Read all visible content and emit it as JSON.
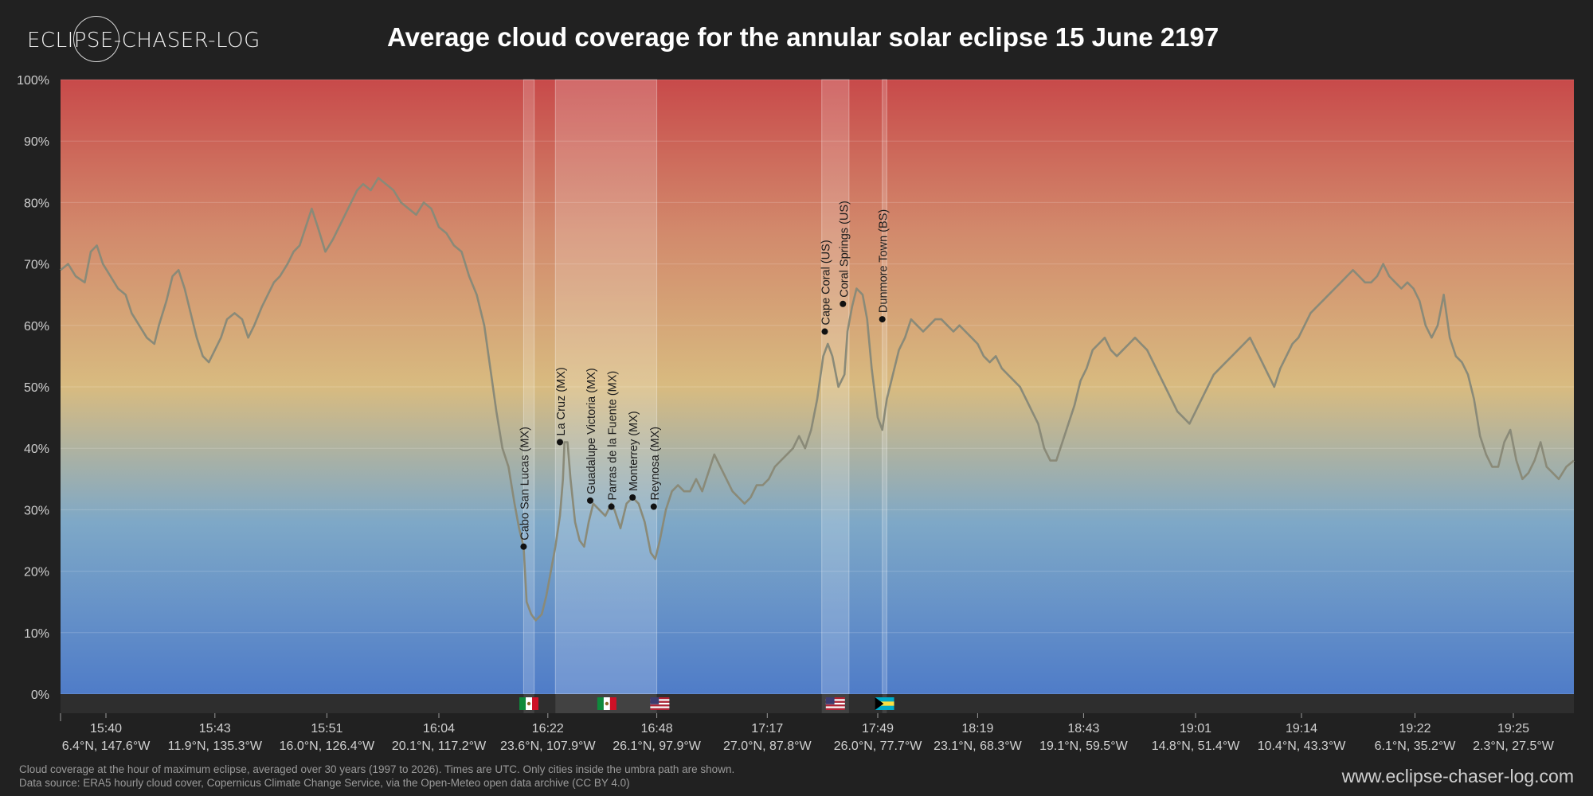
{
  "header": {
    "logo_text": "ECLIPSE-CHASER-LOG",
    "title": "Average cloud coverage for the annular solar eclipse 15 June 2197"
  },
  "footer": {
    "note_line1": "Cloud coverage at the hour of maximum eclipse, averaged over 30 years (1997 to 2026). Times are UTC. Only cities inside the umbra path are shown.",
    "note_line2": "Data source: ERA5 hourly cloud cover, Copernicus Climate Change Service, via the Open-Meteo open data archive (CC BY 4.0)",
    "site": "www.eclipse-chaser-log.com"
  },
  "colors": {
    "background": "#212121",
    "gradient_top": "#c84a4a",
    "gradient_mid": "#d8bb80",
    "gradient_bottom": "#4f7cc8",
    "line": "#8a8a78"
  },
  "chart_data": {
    "type": "line",
    "title": "Average cloud coverage for the annular solar eclipse 15 June 2197",
    "ylabel": "",
    "xlabel": "",
    "ylim": [
      0,
      100
    ],
    "yticks": [
      "0%",
      "10%",
      "20%",
      "30%",
      "40%",
      "50%",
      "60%",
      "70%",
      "80%",
      "90%",
      "100%"
    ],
    "grid": true,
    "x_ticks": [
      {
        "time": "15:40",
        "coord": "6.4°N, 147.6°W",
        "pos": 0.03
      },
      {
        "time": "15:43",
        "coord": "11.9°N, 135.3°W",
        "pos": 0.102
      },
      {
        "time": "15:51",
        "coord": "16.0°N, 126.4°W",
        "pos": 0.176
      },
      {
        "time": "16:04",
        "coord": "20.1°N, 117.2°W",
        "pos": 0.25
      },
      {
        "time": "16:22",
        "coord": "23.6°N, 107.9°W",
        "pos": 0.322
      },
      {
        "time": "16:48",
        "coord": "26.1°N, 97.9°W",
        "pos": 0.394
      },
      {
        "time": "17:17",
        "coord": "27.0°N, 87.8°W",
        "pos": 0.467
      },
      {
        "time": "17:49",
        "coord": "26.0°N, 77.7°W",
        "pos": 0.54
      },
      {
        "time": "18:19",
        "coord": "23.1°N, 68.3°W",
        "pos": 0.606
      },
      {
        "time": "18:43",
        "coord": "19.1°N, 59.5°W",
        "pos": 0.676
      },
      {
        "time": "19:01",
        "coord": "14.8°N, 51.4°W",
        "pos": 0.75
      },
      {
        "time": "19:14",
        "coord": "10.4°N, 43.3°W",
        "pos": 0.82
      },
      {
        "time": "19:22",
        "coord": "6.1°N, 35.2°W",
        "pos": 0.895
      },
      {
        "time": "19:25",
        "coord": "2.3°N, 27.5°W",
        "pos": 0.96
      }
    ],
    "series": [
      {
        "values": [
          [
            0.0,
            69
          ],
          [
            0.005,
            70
          ],
          [
            0.01,
            68
          ],
          [
            0.016,
            67
          ],
          [
            0.02,
            72
          ],
          [
            0.024,
            73
          ],
          [
            0.028,
            70
          ],
          [
            0.033,
            68
          ],
          [
            0.038,
            66
          ],
          [
            0.043,
            65
          ],
          [
            0.047,
            62
          ],
          [
            0.052,
            60
          ],
          [
            0.057,
            58
          ],
          [
            0.062,
            57
          ],
          [
            0.065,
            60
          ],
          [
            0.07,
            64
          ],
          [
            0.074,
            68
          ],
          [
            0.078,
            69
          ],
          [
            0.082,
            66
          ],
          [
            0.086,
            62
          ],
          [
            0.09,
            58
          ],
          [
            0.094,
            55
          ],
          [
            0.098,
            54
          ],
          [
            0.102,
            56
          ],
          [
            0.106,
            58
          ],
          [
            0.11,
            61
          ],
          [
            0.115,
            62
          ],
          [
            0.12,
            61
          ],
          [
            0.124,
            58
          ],
          [
            0.128,
            60
          ],
          [
            0.133,
            63
          ],
          [
            0.137,
            65
          ],
          [
            0.141,
            67
          ],
          [
            0.145,
            68
          ],
          [
            0.15,
            70
          ],
          [
            0.154,
            72
          ],
          [
            0.158,
            73
          ],
          [
            0.162,
            76
          ],
          [
            0.166,
            79
          ],
          [
            0.17,
            76
          ],
          [
            0.175,
            72
          ],
          [
            0.18,
            74
          ],
          [
            0.184,
            76
          ],
          [
            0.188,
            78
          ],
          [
            0.192,
            80
          ],
          [
            0.196,
            82
          ],
          [
            0.2,
            83
          ],
          [
            0.205,
            82
          ],
          [
            0.21,
            84
          ],
          [
            0.215,
            83
          ],
          [
            0.22,
            82
          ],
          [
            0.225,
            80
          ],
          [
            0.23,
            79
          ],
          [
            0.235,
            78
          ],
          [
            0.24,
            80
          ],
          [
            0.245,
            79
          ],
          [
            0.25,
            76
          ],
          [
            0.255,
            75
          ],
          [
            0.26,
            73
          ],
          [
            0.265,
            72
          ],
          [
            0.27,
            68
          ],
          [
            0.275,
            65
          ],
          [
            0.28,
            60
          ],
          [
            0.284,
            53
          ],
          [
            0.288,
            46
          ],
          [
            0.292,
            40
          ],
          [
            0.296,
            37
          ],
          [
            0.3,
            31
          ],
          [
            0.303,
            27
          ],
          [
            0.306,
            24
          ],
          [
            0.308,
            15
          ],
          [
            0.311,
            13
          ],
          [
            0.314,
            12
          ],
          [
            0.318,
            13
          ],
          [
            0.321,
            16
          ],
          [
            0.324,
            20
          ],
          [
            0.327,
            24
          ],
          [
            0.33,
            29
          ],
          [
            0.332,
            35
          ],
          [
            0.333,
            41
          ],
          [
            0.335,
            41
          ],
          [
            0.337,
            35
          ],
          [
            0.34,
            28
          ],
          [
            0.343,
            25
          ],
          [
            0.346,
            24
          ],
          [
            0.349,
            28
          ],
          [
            0.352,
            31
          ],
          [
            0.356,
            30
          ],
          [
            0.36,
            29
          ],
          [
            0.364,
            31
          ],
          [
            0.366,
            30
          ],
          [
            0.37,
            27
          ],
          [
            0.374,
            31
          ],
          [
            0.378,
            32
          ],
          [
            0.382,
            31
          ],
          [
            0.386,
            28
          ],
          [
            0.39,
            23
          ],
          [
            0.393,
            22
          ],
          [
            0.396,
            25
          ],
          [
            0.4,
            30
          ],
          [
            0.404,
            33
          ],
          [
            0.408,
            34
          ],
          [
            0.412,
            33
          ],
          [
            0.416,
            33
          ],
          [
            0.42,
            35
          ],
          [
            0.424,
            33
          ],
          [
            0.428,
            36
          ],
          [
            0.432,
            39
          ],
          [
            0.436,
            37
          ],
          [
            0.44,
            35
          ],
          [
            0.444,
            33
          ],
          [
            0.448,
            32
          ],
          [
            0.452,
            31
          ],
          [
            0.456,
            32
          ],
          [
            0.46,
            34
          ],
          [
            0.464,
            34
          ],
          [
            0.468,
            35
          ],
          [
            0.472,
            37
          ],
          [
            0.476,
            38
          ],
          [
            0.48,
            39
          ],
          [
            0.484,
            40
          ],
          [
            0.488,
            42
          ],
          [
            0.492,
            40
          ],
          [
            0.496,
            43
          ],
          [
            0.5,
            48
          ],
          [
            0.504,
            55
          ],
          [
            0.507,
            57
          ],
          [
            0.51,
            55
          ],
          [
            0.514,
            50
          ],
          [
            0.518,
            52
          ],
          [
            0.52,
            59
          ],
          [
            0.523,
            63
          ],
          [
            0.526,
            66
          ],
          [
            0.53,
            65
          ],
          [
            0.533,
            61
          ],
          [
            0.536,
            53
          ],
          [
            0.54,
            45
          ],
          [
            0.543,
            43
          ],
          [
            0.546,
            48
          ],
          [
            0.55,
            52
          ],
          [
            0.554,
            56
          ],
          [
            0.558,
            58
          ],
          [
            0.562,
            61
          ],
          [
            0.566,
            60
          ],
          [
            0.57,
            59
          ],
          [
            0.574,
            60
          ],
          [
            0.578,
            61
          ],
          [
            0.582,
            61
          ],
          [
            0.586,
            60
          ],
          [
            0.59,
            59
          ],
          [
            0.594,
            60
          ],
          [
            0.598,
            59
          ],
          [
            0.602,
            58
          ],
          [
            0.606,
            57
          ],
          [
            0.61,
            55
          ],
          [
            0.614,
            54
          ],
          [
            0.618,
            55
          ],
          [
            0.622,
            53
          ],
          [
            0.626,
            52
          ],
          [
            0.63,
            51
          ],
          [
            0.634,
            50
          ],
          [
            0.638,
            48
          ],
          [
            0.642,
            46
          ],
          [
            0.646,
            44
          ],
          [
            0.65,
            40
          ],
          [
            0.654,
            38
          ],
          [
            0.658,
            38
          ],
          [
            0.662,
            41
          ],
          [
            0.666,
            44
          ],
          [
            0.67,
            47
          ],
          [
            0.674,
            51
          ],
          [
            0.678,
            53
          ],
          [
            0.682,
            56
          ],
          [
            0.686,
            57
          ],
          [
            0.69,
            58
          ],
          [
            0.694,
            56
          ],
          [
            0.698,
            55
          ],
          [
            0.702,
            56
          ],
          [
            0.706,
            57
          ],
          [
            0.71,
            58
          ],
          [
            0.714,
            57
          ],
          [
            0.718,
            56
          ],
          [
            0.722,
            54
          ],
          [
            0.726,
            52
          ],
          [
            0.73,
            50
          ],
          [
            0.734,
            48
          ],
          [
            0.738,
            46
          ],
          [
            0.742,
            45
          ],
          [
            0.746,
            44
          ],
          [
            0.75,
            46
          ],
          [
            0.754,
            48
          ],
          [
            0.758,
            50
          ],
          [
            0.762,
            52
          ],
          [
            0.766,
            53
          ],
          [
            0.77,
            54
          ],
          [
            0.774,
            55
          ],
          [
            0.778,
            56
          ],
          [
            0.782,
            57
          ],
          [
            0.786,
            58
          ],
          [
            0.79,
            56
          ],
          [
            0.794,
            54
          ],
          [
            0.798,
            52
          ],
          [
            0.802,
            50
          ],
          [
            0.806,
            53
          ],
          [
            0.81,
            55
          ],
          [
            0.814,
            57
          ],
          [
            0.818,
            58
          ],
          [
            0.822,
            60
          ],
          [
            0.826,
            62
          ],
          [
            0.83,
            63
          ],
          [
            0.834,
            64
          ],
          [
            0.838,
            65
          ],
          [
            0.842,
            66
          ],
          [
            0.846,
            67
          ],
          [
            0.85,
            68
          ],
          [
            0.854,
            69
          ],
          [
            0.858,
            68
          ],
          [
            0.862,
            67
          ],
          [
            0.866,
            67
          ],
          [
            0.87,
            68
          ],
          [
            0.874,
            70
          ],
          [
            0.878,
            68
          ],
          [
            0.882,
            67
          ],
          [
            0.886,
            66
          ],
          [
            0.89,
            67
          ],
          [
            0.894,
            66
          ],
          [
            0.898,
            64
          ],
          [
            0.902,
            60
          ],
          [
            0.906,
            58
          ],
          [
            0.91,
            60
          ],
          [
            0.914,
            65
          ],
          [
            0.918,
            58
          ],
          [
            0.922,
            55
          ],
          [
            0.926,
            54
          ],
          [
            0.93,
            52
          ],
          [
            0.934,
            48
          ],
          [
            0.938,
            42
          ],
          [
            0.942,
            39
          ],
          [
            0.946,
            37
          ],
          [
            0.95,
            37
          ],
          [
            0.954,
            41
          ],
          [
            0.958,
            43
          ],
          [
            0.962,
            38
          ],
          [
            0.966,
            35
          ],
          [
            0.97,
            36
          ],
          [
            0.974,
            38
          ],
          [
            0.978,
            41
          ],
          [
            0.982,
            37
          ],
          [
            0.986,
            36
          ],
          [
            0.99,
            35
          ],
          [
            0.995,
            37
          ],
          [
            1.0,
            38
          ]
        ]
      }
    ],
    "bands": [
      {
        "from": 0.306,
        "to": 0.313,
        "shade": "light",
        "flag": "mx"
      },
      {
        "from": 0.327,
        "to": 0.394,
        "shade": "light",
        "flag": "mx-us"
      },
      {
        "from": 0.503,
        "to": 0.521,
        "shade": "light",
        "flag": "us"
      },
      {
        "from": 0.543,
        "to": 0.546,
        "shade": "light",
        "flag": "bs"
      }
    ],
    "cities": [
      {
        "name": "Cabo San Lucas (MX)",
        "x": 0.306,
        "y": 24
      },
      {
        "name": "La Cruz (MX)",
        "x": 0.33,
        "y": 41
      },
      {
        "name": "Guadalupe Victoria (MX)",
        "x": 0.35,
        "y": 31.5
      },
      {
        "name": "Parras de la Fuente (MX)",
        "x": 0.364,
        "y": 30.5
      },
      {
        "name": "Monterrey (MX)",
        "x": 0.378,
        "y": 32
      },
      {
        "name": "Reynosa (MX)",
        "x": 0.392,
        "y": 30.5
      },
      {
        "name": "Cape Coral (US)",
        "x": 0.505,
        "y": 59
      },
      {
        "name": "Coral Springs (US)",
        "x": 0.517,
        "y": 63.5
      },
      {
        "name": "Dunmore Town (BS)",
        "x": 0.543,
        "y": 61
      }
    ]
  }
}
